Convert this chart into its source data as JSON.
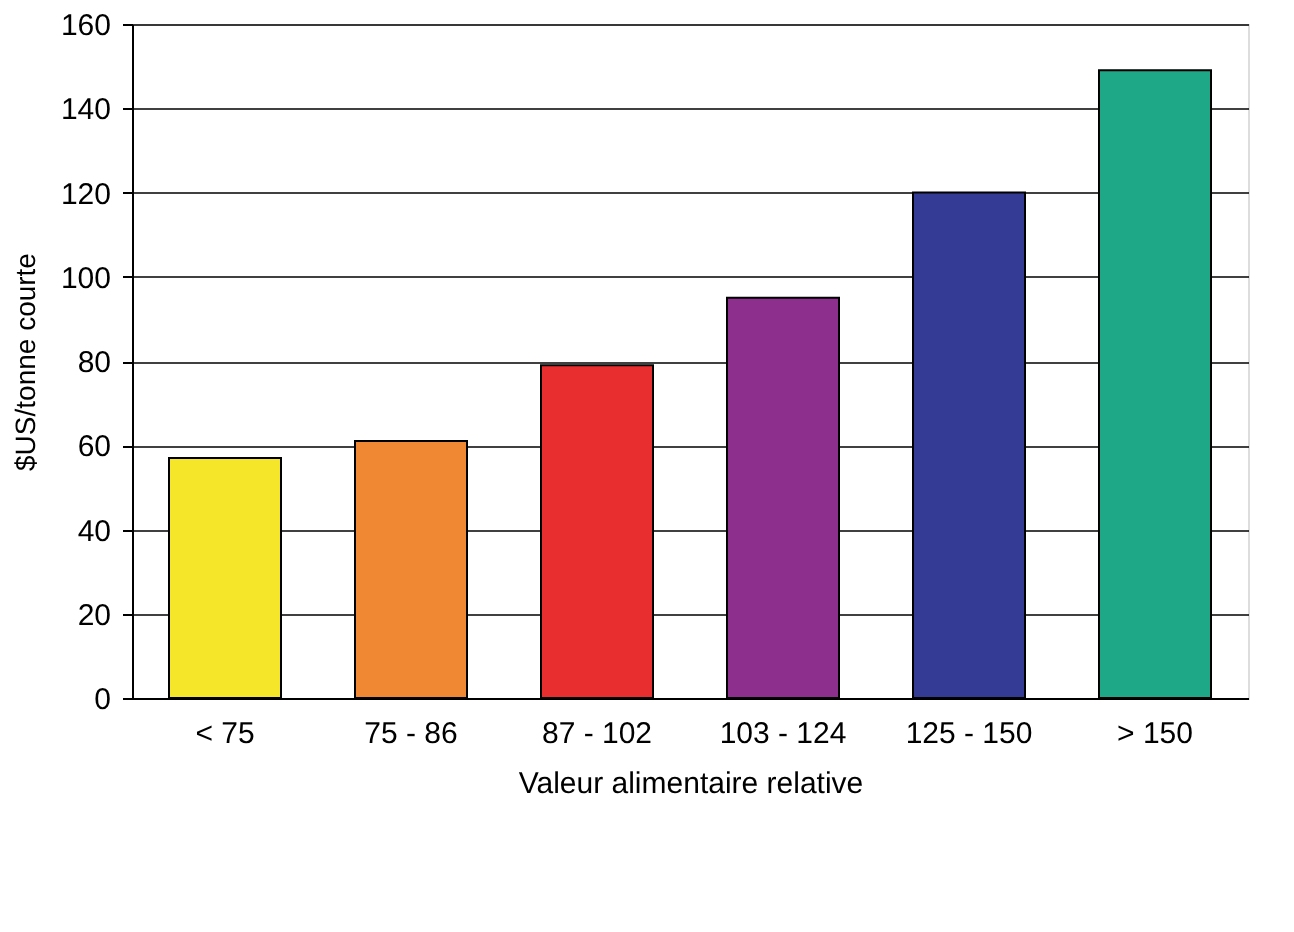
{
  "chart_data": {
    "type": "bar",
    "xlabel": "Valeur alimentaire relative",
    "ylabel": "$US/tonne courte",
    "categories": [
      "< 75",
      "75 - 86",
      "87 - 102",
      "103 - 124",
      "125 - 150",
      "> 150"
    ],
    "values": [
      57,
      61,
      79,
      95,
      120,
      149
    ],
    "colors": [
      "#f5e62a",
      "#f08833",
      "#e92e2f",
      "#8c2f8d",
      "#343b95",
      "#1fa887"
    ],
    "ylim": [
      0,
      160
    ],
    "yticks": [
      0,
      20,
      40,
      60,
      80,
      100,
      120,
      140,
      160
    ],
    "grid": "y",
    "legend": false
  }
}
